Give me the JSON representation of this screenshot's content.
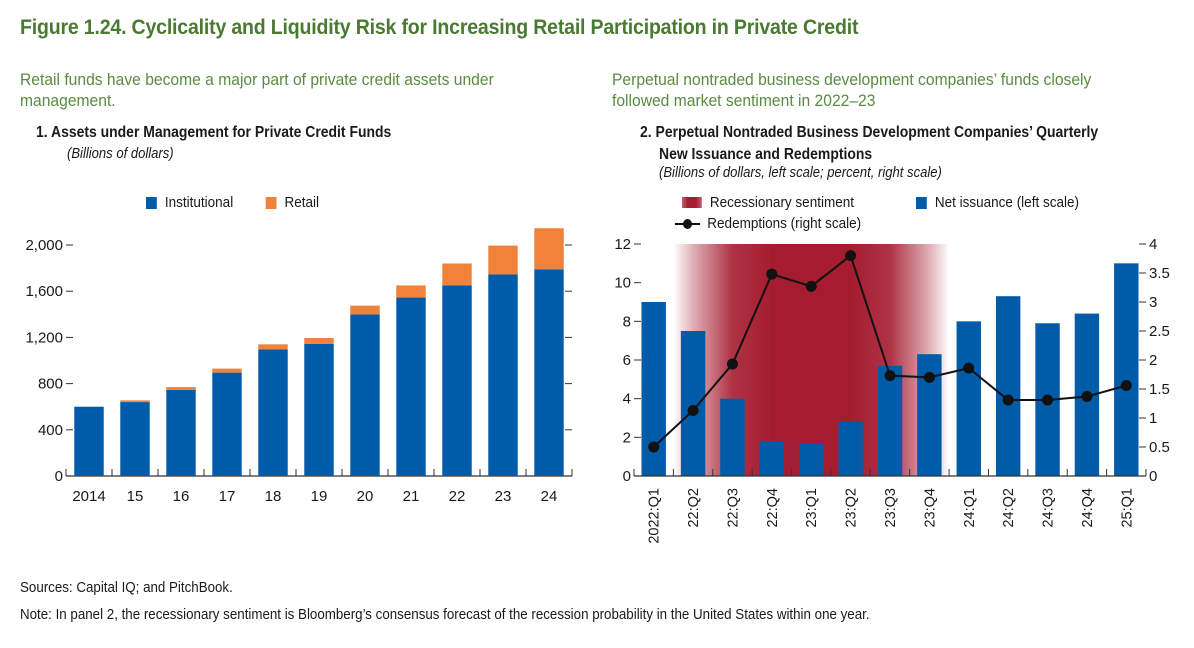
{
  "figure": {
    "title": "Figure 1.24. Cyclicality and Liquidity Risk for Increasing Retail Participation in Private Credit",
    "sources": "Sources: Capital IQ; and PitchBook.",
    "note": "Note: In panel 2, the recessionary sentiment is Bloomberg’s consensus forecast of the recession probability in the United States within one year."
  },
  "colors": {
    "title_green": "#4a7a32",
    "lead_green": "#5b8a42",
    "blue": "#005ba8",
    "orange": "#f0823a",
    "recession_red": "#a51c30",
    "line_black": "#111111"
  },
  "chart_data": [
    {
      "type": "bar",
      "stacked": true,
      "lead": "Retail funds have become a major part of private credit assets under management.",
      "title": "1. Assets under Management for Private Credit Funds",
      "subtitle": "(Billions of dollars)",
      "categories": [
        "2014",
        "15",
        "16",
        "17",
        "18",
        "19",
        "20",
        "21",
        "22",
        "23",
        "24"
      ],
      "series": [
        {
          "name": "Institutional",
          "color": "#005ba8",
          "values": [
            600,
            640,
            745,
            895,
            1095,
            1145,
            1400,
            1545,
            1650,
            1745,
            1790
          ]
        },
        {
          "name": "Retail",
          "color": "#f0823a",
          "values": [
            0,
            15,
            25,
            35,
            45,
            50,
            75,
            105,
            190,
            250,
            355
          ]
        }
      ],
      "ylim": [
        0,
        2200
      ],
      "yticks": [
        0,
        400,
        800,
        1200,
        1600,
        2000
      ],
      "ytick_labels": [
        "0",
        "400",
        "800",
        "1,200",
        "1,600",
        "2,000"
      ],
      "legend_position": "top",
      "grid": false
    },
    {
      "type": "bar+line",
      "lead": "Perpetual nontraded business development companies’ funds closely followed market sentiment in 2022–23",
      "title_line1": "2. Perpetual Nontraded Business Development Companies’ Quarterly",
      "title_line2": "New Issuance and Redemptions",
      "subtitle": "(Billions of dollars, left scale; percent, right scale)",
      "categories": [
        "2022:Q1",
        "22:Q2",
        "22:Q3",
        "22:Q4",
        "23:Q1",
        "23:Q2",
        "23:Q3",
        "23:Q4",
        "24:Q1",
        "24:Q2",
        "24:Q3",
        "24:Q4",
        "25:Q1"
      ],
      "series": [
        {
          "name": "Net issuance (left scale)",
          "type": "bar",
          "axis": "left",
          "color": "#005ba8",
          "values": [
            9.0,
            7.5,
            4.0,
            1.8,
            1.7,
            2.8,
            5.7,
            6.3,
            8.0,
            9.3,
            7.9,
            8.4,
            11.0
          ]
        },
        {
          "name": "Redemptions (right scale)",
          "type": "line",
          "axis": "right",
          "color": "#111111",
          "values": [
            0.5,
            1.13,
            1.93,
            3.48,
            3.27,
            3.8,
            1.73,
            1.7,
            1.86,
            1.31,
            1.31,
            1.37,
            1.56
          ]
        }
      ],
      "shading": {
        "name": "Recessionary sentiment",
        "color": "#a51c30",
        "intensity": [
          0,
          0.35,
          0.9,
          1,
          1,
          1,
          0.9,
          0.35,
          0,
          0,
          0,
          0,
          0
        ]
      },
      "ylim_left": [
        0,
        12
      ],
      "yticks_left": [
        0,
        2,
        4,
        6,
        8,
        10,
        12
      ],
      "ytick_labels_left": [
        "0",
        "2",
        "4",
        "6",
        "8",
        "10",
        "12"
      ],
      "ylim_right": [
        0,
        4
      ],
      "yticks_right": [
        0,
        0.5,
        1,
        1.5,
        2,
        2.5,
        3,
        3.5,
        4
      ],
      "ytick_labels_right": [
        "0",
        "0.5",
        "1",
        "1.5",
        "2",
        "2.5",
        "3",
        "3.5",
        "4"
      ],
      "legend_position": "top",
      "grid": false
    }
  ]
}
